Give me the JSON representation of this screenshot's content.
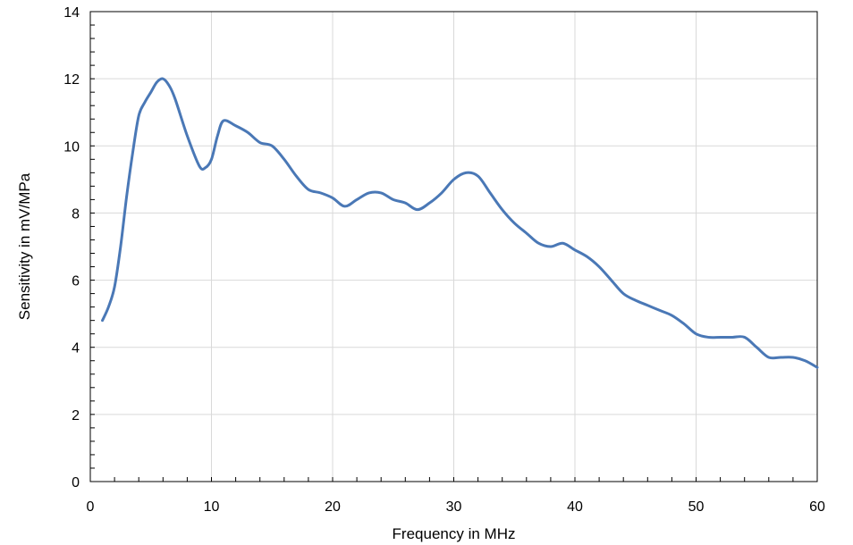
{
  "chart_data": {
    "type": "line",
    "xlabel": "Frequency in MHz",
    "ylabel": "Sensitivity in mV/MPa",
    "xlim": [
      0,
      60
    ],
    "ylim": [
      0,
      14
    ],
    "xticks": [
      0,
      10,
      20,
      30,
      40,
      50,
      60
    ],
    "yticks": [
      0,
      2,
      4,
      6,
      8,
      10,
      12,
      14
    ],
    "grid": true,
    "line_color": "#4a78b6",
    "series": [
      {
        "x": [
          1,
          1.5,
          2,
          2.5,
          3,
          3.5,
          4,
          4.5,
          5,
          5.5,
          6,
          6.5,
          7,
          8,
          9,
          9.5,
          10,
          10.5,
          11,
          12,
          13,
          14,
          15,
          16,
          17,
          18,
          19,
          20,
          21,
          22,
          23,
          24,
          25,
          26,
          27,
          28,
          29,
          30,
          31,
          32,
          33,
          34,
          35,
          36,
          37,
          38,
          39,
          40,
          41,
          42,
          43,
          44,
          45,
          46,
          47,
          48,
          49,
          50,
          51,
          52,
          53,
          54,
          55,
          56,
          57,
          58,
          59,
          60
        ],
        "y": [
          4.8,
          5.2,
          5.8,
          7.0,
          8.5,
          9.8,
          10.9,
          11.3,
          11.6,
          11.9,
          12.0,
          11.8,
          11.4,
          10.3,
          9.4,
          9.35,
          9.6,
          10.3,
          10.75,
          10.6,
          10.4,
          10.1,
          10.0,
          9.6,
          9.1,
          8.7,
          8.6,
          8.45,
          8.2,
          8.4,
          8.6,
          8.6,
          8.4,
          8.3,
          8.1,
          8.3,
          8.6,
          9.0,
          9.2,
          9.1,
          8.6,
          8.1,
          7.7,
          7.4,
          7.1,
          7.0,
          7.1,
          6.9,
          6.7,
          6.4,
          6.0,
          5.6,
          5.4,
          5.25,
          5.1,
          4.95,
          4.7,
          4.4,
          4.3,
          4.3,
          4.3,
          4.3,
          4.0,
          3.7,
          3.7,
          3.7,
          3.6,
          3.4
        ]
      }
    ]
  }
}
